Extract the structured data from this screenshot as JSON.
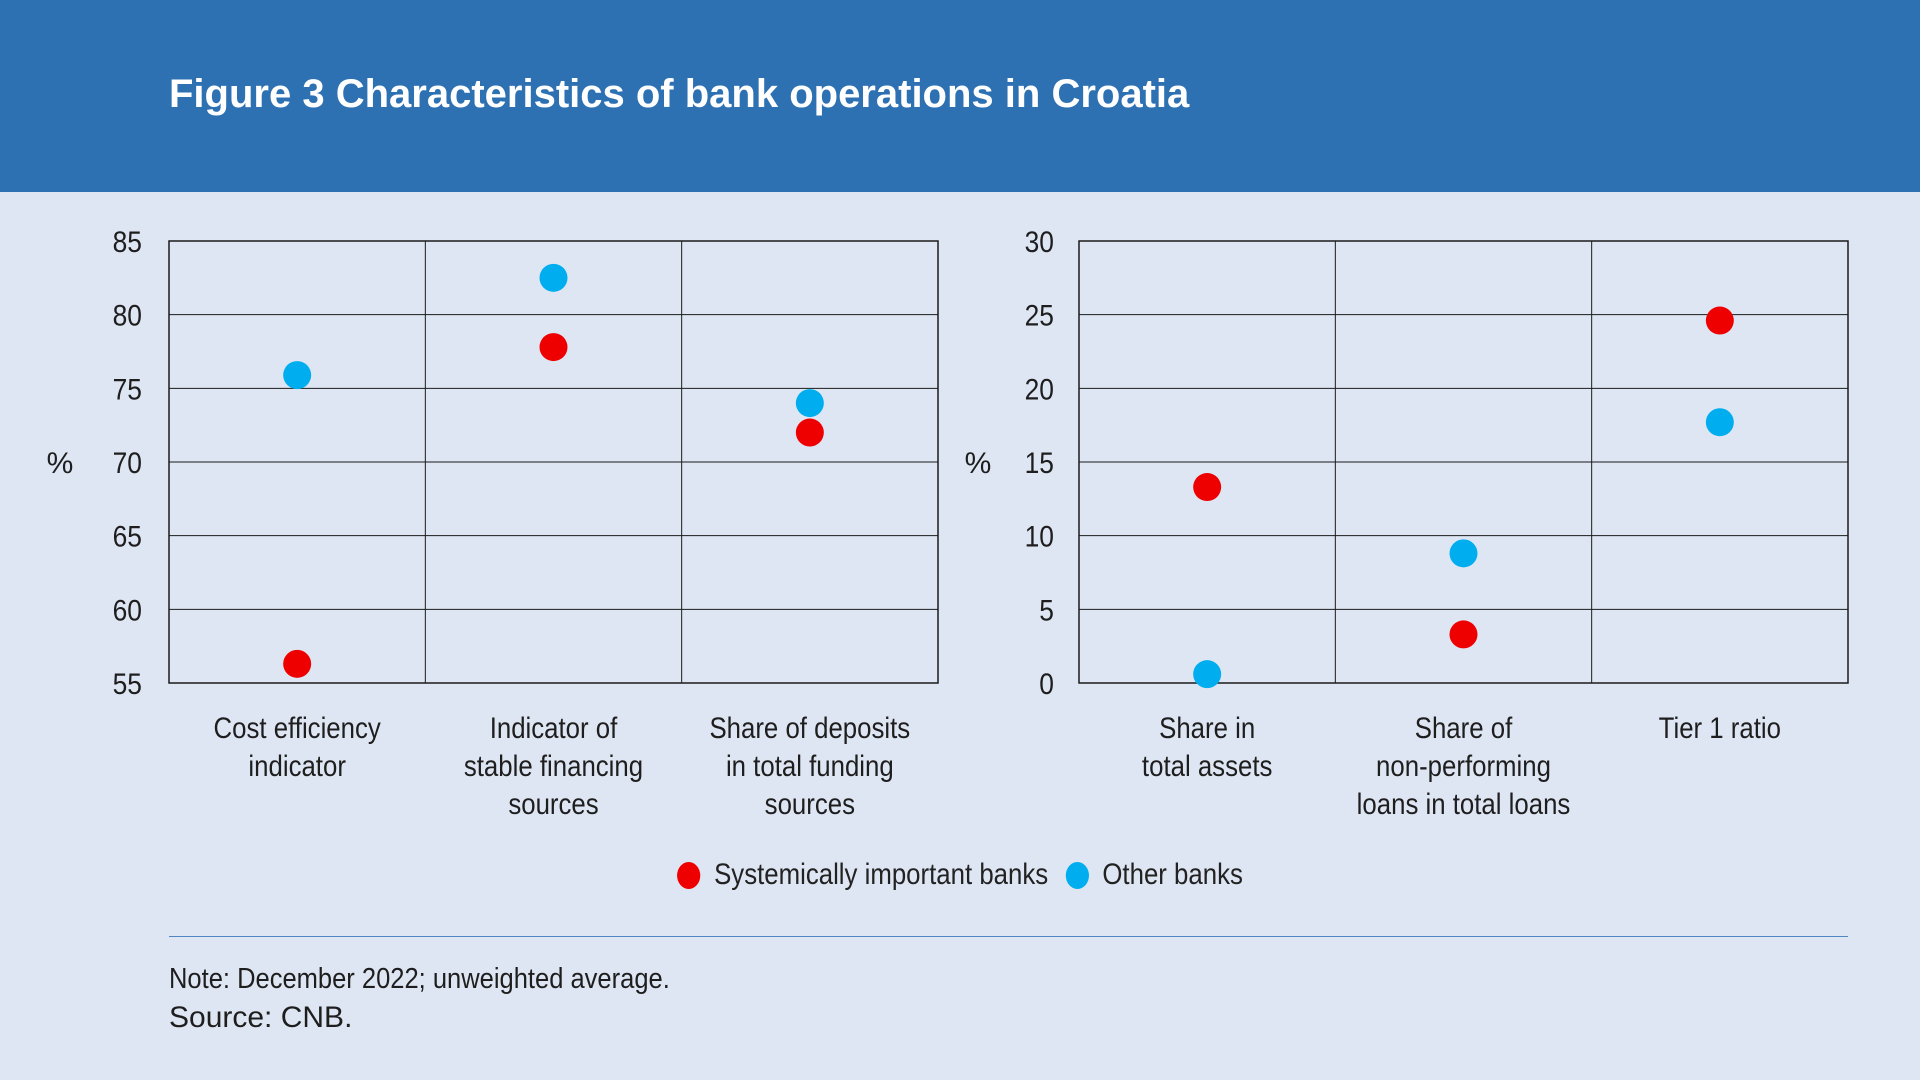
{
  "title": "Figure 3 Characteristics of bank operations in Croatia",
  "colors": {
    "header_bg": "#2e71b3",
    "page_bg": "#dfe6f3",
    "systemic": "#ee0000",
    "other": "#00aeef"
  },
  "chart_data": [
    {
      "type": "scatter",
      "ylabel": "%",
      "ylim": [
        55,
        85
      ],
      "yticks": [
        "55",
        "60",
        "65",
        "70",
        "75",
        "80",
        "85"
      ],
      "categories": [
        [
          "Cost efficiency",
          "indicator"
        ],
        [
          "Indicator of",
          "stable financing",
          "sources"
        ],
        [
          "Share of deposits",
          "in total funding",
          "sources"
        ]
      ],
      "grid": true,
      "series": [
        {
          "name": "Systemically important banks",
          "color": "#ee0000",
          "values": [
            56.3,
            77.8,
            72.0
          ]
        },
        {
          "name": "Other banks",
          "color": "#00aeef",
          "values": [
            75.9,
            82.5,
            74.0
          ]
        }
      ]
    },
    {
      "type": "scatter",
      "ylabel": "%",
      "ylim": [
        0,
        30
      ],
      "yticks": [
        "0",
        "5",
        "10",
        "15",
        "20",
        "25",
        "30"
      ],
      "categories": [
        [
          "Share in",
          "total assets"
        ],
        [
          "Share of",
          "non-performing",
          "loans in total loans"
        ],
        [
          "Tier 1 ratio"
        ]
      ],
      "grid": true,
      "series": [
        {
          "name": "Systemically important banks",
          "color": "#ee0000",
          "values": [
            13.3,
            3.3,
            24.6
          ]
        },
        {
          "name": "Other banks",
          "color": "#00aeef",
          "values": [
            0.6,
            8.8,
            17.7
          ]
        }
      ]
    }
  ],
  "legend": {
    "placement": "bottom-center",
    "items": [
      {
        "label": "Systemically important banks",
        "color": "#ee0000"
      },
      {
        "label": "Other banks",
        "color": "#00aeef"
      }
    ]
  },
  "note": "Note: December 2022; unweighted average.",
  "source": "Source: CNB."
}
